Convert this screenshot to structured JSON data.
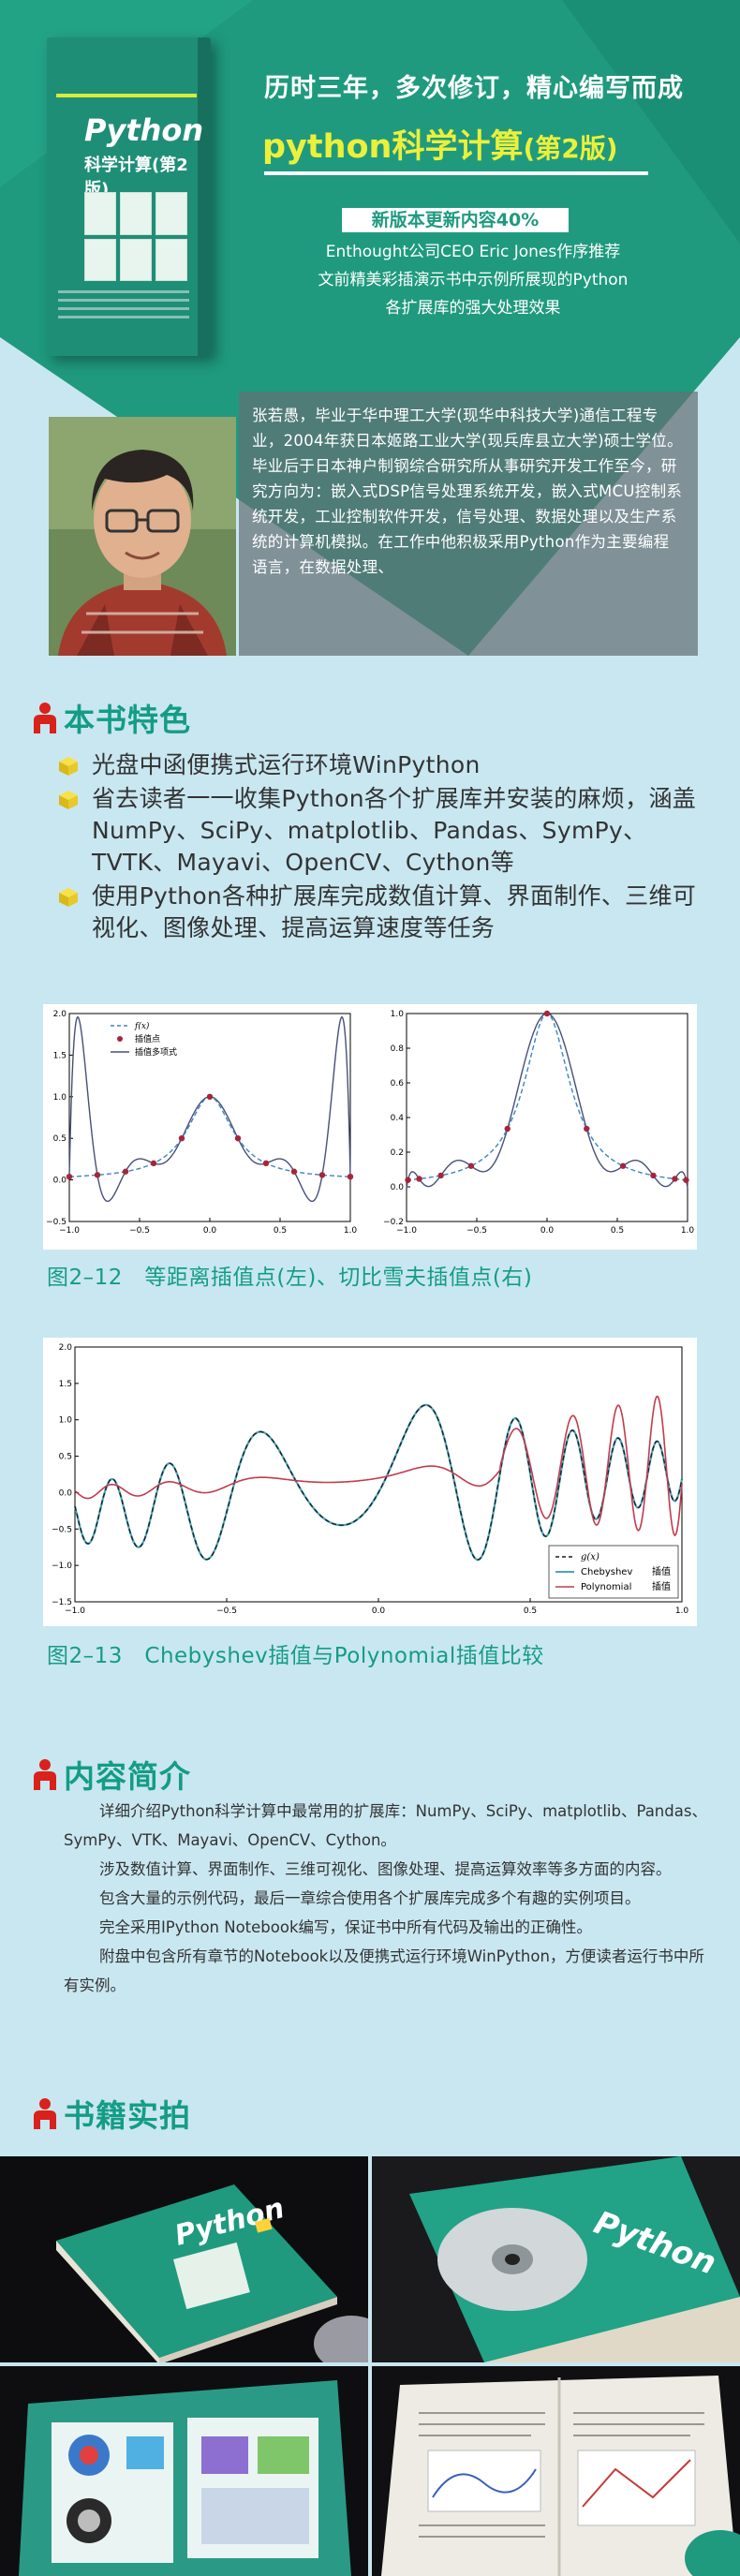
{
  "header": {
    "book_cover": {
      "title": "Python",
      "subtitle": "科学计算(第2版)"
    },
    "headline": "历时三年，多次修订，精心编写而成",
    "title_main": "python科学计算",
    "title_edition": "(第2版)",
    "badge": "新版本更新内容40%",
    "lines": [
      "Enthought公司CEO Eric Jones作序推荐",
      "文前精美彩插演示书中示例所展现的Python",
      "各扩展库的强大处理效果"
    ]
  },
  "author": {
    "bio": "张若愚，毕业于华中理工大学(现华中科技大学)通信工程专业，2004年获日本姬路工业大学(现兵库县立大学)硕士学位。毕业后于日本神户制钢综合研究所从事研究开发工作至今，研究方向为：嵌入式DSP信号处理系统开发，嵌入式MCU控制系统开发，工业控制软件开发，信号处理、数据处理以及生产系统的计算机模拟。在工作中他积极采用Python作为主要编程语言，在数据处理、"
  },
  "features": {
    "title": "本书特色",
    "items": [
      "光盘中函便携式运行环境WinPython",
      "省去读者一一收集Python各个扩展库并安装的麻烦，涵盖NumPy、SciPy、matplotlib、Pandas、SymPy、TVTK、Mayavi、OpenCV、Cython等",
      "使用Python各种扩展库完成数值计算、界面制作、三维可视化、图像处理、提高运算速度等任务"
    ]
  },
  "figures": {
    "fig1_caption": "图2–12　等距离插值点(左)、切比雪夫插值点(右)",
    "fig2_caption": "图2–13　Chebyshev插值与Polynomial插值比较"
  },
  "chart_data": [
    {
      "type": "line",
      "x": [
        -1.0,
        -0.5,
        0.0,
        0.5,
        1.0
      ],
      "series": [
        {
          "name": "f(x)"
        },
        {
          "name": "插值点"
        },
        {
          "name": "插值多项式"
        }
      ],
      "xticks": [
        "−1.0",
        "−0.5",
        "0.0",
        "0.5",
        "1.0"
      ],
      "yticks": [
        "−0.5",
        "0.0",
        "0.5",
        "1.0",
        "1.5",
        "2.0"
      ],
      "xlim": [
        -1.0,
        1.0
      ],
      "ylim": [
        -0.5,
        2.0
      ],
      "legend": "top-left"
    },
    {
      "type": "line",
      "xticks": [
        "−1.0",
        "−0.5",
        "0.0",
        "0.5",
        "1.0"
      ],
      "yticks": [
        "−0.2",
        "0.0",
        "0.2",
        "0.4",
        "0.6",
        "0.8",
        "1.0"
      ],
      "xlim": [
        -1.0,
        1.0
      ],
      "ylim": [
        -0.2,
        1.0
      ]
    },
    {
      "type": "line",
      "series": [
        {
          "name": "g(x)"
        },
        {
          "name": "Chebyshev"
        },
        {
          "name": "Polynomial"
        }
      ],
      "legend_note": "插值",
      "xticks": [
        "−1.0",
        "−0.5",
        "0.0",
        "0.5",
        "1.0"
      ],
      "yticks": [
        "−1.5",
        "−1.0",
        "−0.5",
        "0.0",
        "0.5",
        "1.0",
        "1.5",
        "2.0"
      ],
      "xlim": [
        -1.0,
        1.0
      ],
      "ylim": [
        -1.5,
        2.0
      ],
      "legend": "bottom-right"
    }
  ],
  "intro": {
    "title": "内容简介",
    "paragraphs": [
      "详细介绍Python科学计算中最常用的扩展库：NumPy、SciPy、matplotlib、Pandas、SymPy、VTK、Mayavi、OpenCV、Cython。",
      "涉及数值计算、界面制作、三维可视化、图像处理、提高运算效率等多方面的内容。",
      "包含大量的示例代码，最后一章综合使用各个扩展库完成多个有趣的实例项目。",
      "完全采用IPython Notebook编写，保证书中所有代码及输出的正确性。",
      "附盘中包含所有章节的Notebook以及便携式运行环境WinPython，方便读者运行书中所有实例。"
    ]
  },
  "photos": {
    "title": "书籍实拍"
  },
  "colors": {
    "teal": "#149c86",
    "green": "#1f9a7e",
    "accent": "#ecf03a",
    "bg": "#c9e7f1"
  }
}
